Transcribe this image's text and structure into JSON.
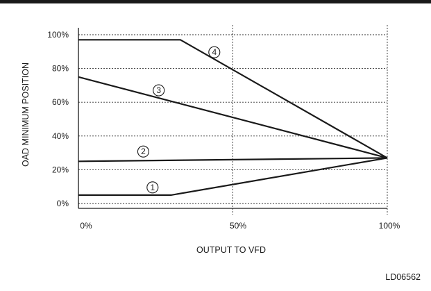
{
  "chart_data": {
    "type": "line",
    "title": "",
    "xlabel": "OUTPUT TO VFD",
    "ylabel": "OAD MINIMUM POSITION",
    "xlim": [
      0,
      100
    ],
    "ylim": [
      0,
      100
    ],
    "x_ticks": [
      "0%",
      "50%",
      "100%"
    ],
    "y_ticks": [
      "0%",
      "20%",
      "40%",
      "60%",
      "80%",
      "100%"
    ],
    "grid": true,
    "series": [
      {
        "label": "1",
        "points": [
          [
            0,
            5
          ],
          [
            30,
            5
          ],
          [
            100,
            27
          ]
        ]
      },
      {
        "label": "2",
        "points": [
          [
            0,
            25
          ],
          [
            100,
            27
          ]
        ]
      },
      {
        "label": "3",
        "points": [
          [
            0,
            75
          ],
          [
            100,
            27
          ]
        ]
      },
      {
        "label": "4",
        "points": [
          [
            0,
            97
          ],
          [
            33,
            97
          ],
          [
            100,
            27
          ]
        ]
      }
    ],
    "reference_code": "LD06562"
  }
}
